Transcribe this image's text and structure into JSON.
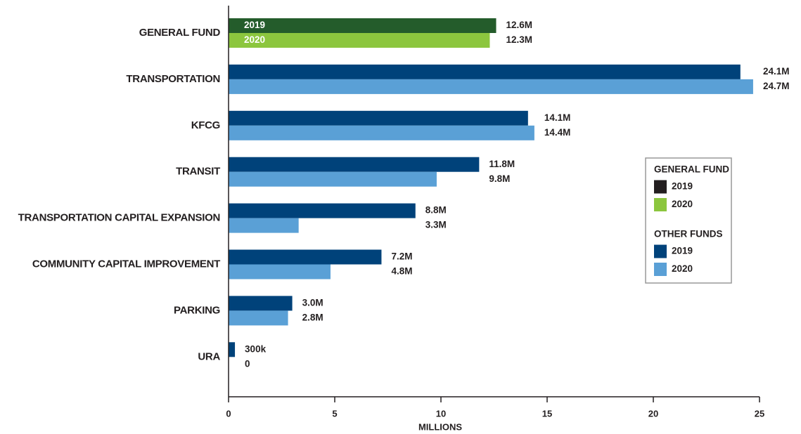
{
  "chart_data": {
    "type": "bar",
    "orientation": "horizontal",
    "categories": [
      "GENERAL FUND",
      "TRANSPORTATION",
      "KFCG",
      "TRANSIT",
      "TRANSPORTATION CAPITAL EXPANSION",
      "COMMUNITY CAPITAL IMPROVEMENT",
      "PARKING",
      "URA"
    ],
    "series": [
      {
        "name": "2019",
        "colors": [
          "#245c2b",
          "#00427a",
          "#00427a",
          "#00427a",
          "#00427a",
          "#00427a",
          "#00427a",
          "#00427a"
        ],
        "values": [
          12.6,
          24.1,
          14.1,
          11.8,
          8.8,
          7.2,
          3.0,
          0.3
        ],
        "value_labels": [
          "12.6M",
          "24.1M",
          "14.1M",
          "11.8M",
          "8.8M",
          "7.2M",
          "3.0M",
          "300k"
        ]
      },
      {
        "name": "2020",
        "colors": [
          "#8cc63e",
          "#5aa0d6",
          "#5aa0d6",
          "#5aa0d6",
          "#5aa0d6",
          "#5aa0d6",
          "#5aa0d6",
          "#5aa0d6"
        ],
        "values": [
          12.3,
          24.7,
          14.4,
          9.8,
          3.3,
          4.8,
          2.8,
          0
        ],
        "value_labels": [
          "12.3M",
          "24.7M",
          "14.4M",
          "9.8M",
          "3.3M",
          "4.8M",
          "2.8M",
          "0"
        ]
      }
    ],
    "x_label": "MILLIONS",
    "xlim": [
      0,
      25
    ],
    "xticks": [
      0,
      5,
      10,
      15,
      20,
      25
    ],
    "legend": [
      {
        "title": "GENERAL FUND",
        "items": [
          {
            "label": "2019",
            "color": "#231f20"
          },
          {
            "label": "2020",
            "color": "#8cc63e"
          }
        ]
      },
      {
        "title": "OTHER FUNDS",
        "items": [
          {
            "label": "2019",
            "color": "#00427a"
          },
          {
            "label": "2020",
            "color": "#5aa0d6"
          }
        ]
      }
    ]
  }
}
